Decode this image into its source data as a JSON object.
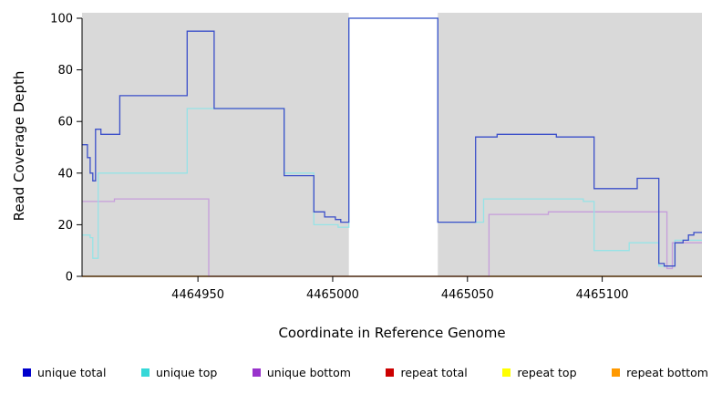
{
  "chart_data": {
    "type": "line",
    "step": true,
    "title": "",
    "xlabel": "Coordinate in Reference Genome",
    "ylabel": "Read Coverage Depth",
    "xlim": [
      4464907,
      4465137
    ],
    "ylim": [
      0,
      100
    ],
    "xticks": [
      4464950,
      4465000,
      4465050,
      4465100
    ],
    "yticks": [
      0,
      20,
      40,
      60,
      80,
      100
    ],
    "grid": false,
    "legend_position": "bottom",
    "plot_background": "#d9d9d9",
    "unshaded_regions": [
      [
        4465006,
        4465039
      ]
    ],
    "draw_order": [
      "repeat total",
      "repeat top",
      "unique bottom",
      "unique top",
      "unique total",
      "repeat bottom"
    ],
    "series": [
      {
        "name": "unique total",
        "color": "#3b4fc9",
        "swatch": "#0000cd",
        "points": [
          [
            4464907,
            51
          ],
          [
            4464909,
            46
          ],
          [
            4464910,
            40
          ],
          [
            4464911,
            37
          ],
          [
            4464912,
            57
          ],
          [
            4464914,
            55
          ],
          [
            4464921,
            70
          ],
          [
            4464946,
            95
          ],
          [
            4464956,
            65
          ],
          [
            4464982,
            39
          ],
          [
            4464993,
            25
          ],
          [
            4464997,
            23
          ],
          [
            4465001,
            22
          ],
          [
            4465003,
            21
          ],
          [
            4465006,
            100
          ],
          [
            4465039,
            21
          ],
          [
            4465053,
            54
          ],
          [
            4465061,
            55
          ],
          [
            4465083,
            54
          ],
          [
            4465097,
            34
          ],
          [
            4465113,
            38
          ],
          [
            4465121,
            5
          ],
          [
            4465123,
            4
          ],
          [
            4465127,
            13
          ],
          [
            4465130,
            14
          ],
          [
            4465132,
            16
          ],
          [
            4465134,
            17
          ]
        ]
      },
      {
        "name": "unique top",
        "color": "#96e3e6",
        "swatch": "#36d8d8",
        "points": [
          [
            4464907,
            16
          ],
          [
            4464910,
            15
          ],
          [
            4464911,
            7
          ],
          [
            4464913,
            40
          ],
          [
            4464946,
            65
          ],
          [
            4464982,
            40
          ],
          [
            4464993,
            20
          ],
          [
            4465002,
            19
          ],
          [
            4465006,
            100
          ],
          [
            4465039,
            21
          ],
          [
            4465056,
            30
          ],
          [
            4465093,
            29
          ],
          [
            4465097,
            10
          ],
          [
            4465110,
            13
          ],
          [
            4465121,
            4
          ],
          [
            4465127,
            14
          ]
        ]
      },
      {
        "name": "unique bottom",
        "color": "#c69ddb",
        "swatch": "#9933cc",
        "points": [
          [
            4464907,
            29
          ],
          [
            4464919,
            30
          ],
          [
            4464954,
            0
          ],
          [
            4465058,
            24
          ],
          [
            4465080,
            25
          ],
          [
            4465124,
            3
          ],
          [
            4465126,
            13
          ]
        ]
      },
      {
        "name": "repeat total",
        "color": "#cc0000",
        "swatch": "#cc0000",
        "points": [
          [
            4464907,
            0
          ]
        ]
      },
      {
        "name": "repeat top",
        "color": "#ffff4d",
        "swatch": "#ffff00",
        "points": [
          [
            4464907,
            0
          ]
        ]
      },
      {
        "name": "repeat bottom",
        "color": "#ffa040",
        "swatch": "#ff9900",
        "points": [
          [
            4464907,
            0
          ]
        ]
      }
    ]
  }
}
